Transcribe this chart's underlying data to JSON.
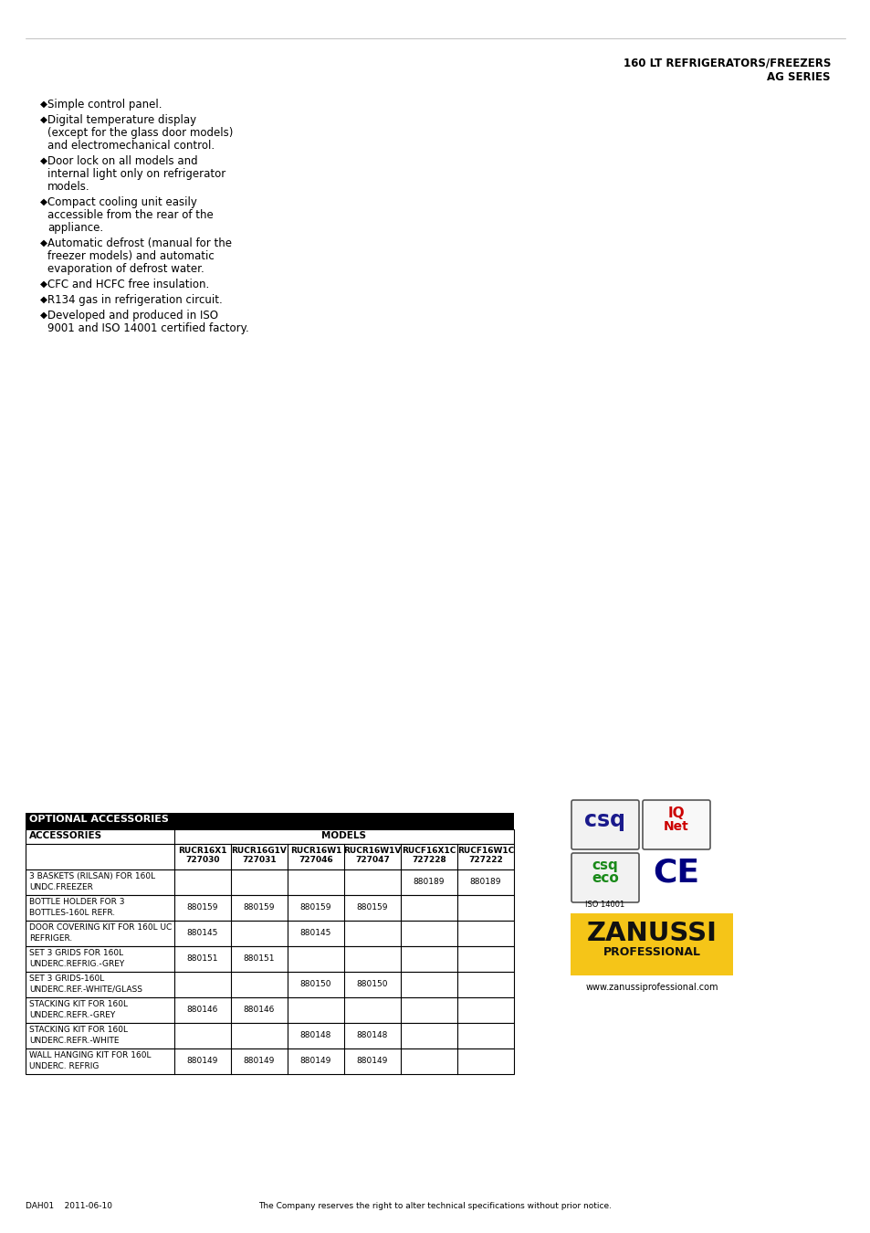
{
  "header_line1": "160 LT REFRIGERATORS/FREEZERS",
  "header_line2": "AG SERIES",
  "bullet_points": [
    "Simple control panel.",
    "Digital temperature display\n(except for the glass door models)\nand electromechanical control.",
    "Door lock on all models and\ninternal light only on refrigerator\nmodels.",
    "Compact cooling unit easily\naccessible from the rear of the\nappliance.",
    "Automatic defrost (manual for the\nfreezer models) and automatic\nevaporation of defrost water.",
    "CFC and HCFC free insulation.",
    "R134 gas in refrigeration circuit.",
    "Developed and produced in ISO\n9001 and ISO 14001 certified factory."
  ],
  "table_header": "OPTIONAL ACCESSORIES",
  "table_col_header": "ACCESSORIES",
  "table_models_header": "MODELS",
  "table_columns": [
    {
      "name": "RUCR16X1",
      "code": "727030"
    },
    {
      "name": "RUCR16G1V",
      "code": "727031"
    },
    {
      "name": "RUCR16W1",
      "code": "727046"
    },
    {
      "name": "RUCR16W1V",
      "code": "727047"
    },
    {
      "name": "RUCF16X1C",
      "code": "727228"
    },
    {
      "name": "RUCF16W1C",
      "code": "727222"
    }
  ],
  "table_rows": [
    {
      "label": "3 BASKETS (RILSAN) FOR 160L\nUNDC.FREEZER",
      "values": [
        "",
        "",
        "",
        "",
        "880189",
        "880189"
      ]
    },
    {
      "label": "BOTTLE HOLDER FOR 3\nBOTTLES-160L REFR.",
      "values": [
        "880159",
        "880159",
        "880159",
        "880159",
        "",
        ""
      ]
    },
    {
      "label": "DOOR COVERING KIT FOR 160L UC\nREFRIGER.",
      "values": [
        "880145",
        "",
        "880145",
        "",
        "",
        ""
      ]
    },
    {
      "label": "SET 3 GRIDS FOR 160L\nUNDERC.REFRIG.-GREY",
      "values": [
        "880151",
        "880151",
        "",
        "",
        "",
        ""
      ]
    },
    {
      "label": "SET 3 GRIDS-160L\nUNDERC.REF.-WHITE/GLASS",
      "values": [
        "",
        "",
        "880150",
        "880150",
        "",
        ""
      ]
    },
    {
      "label": "STACKING KIT FOR 160L\nUNDERC.REFR.-GREY",
      "values": [
        "880146",
        "880146",
        "",
        "",
        "",
        ""
      ]
    },
    {
      "label": "STACKING KIT FOR 160L\nUNDERC.REFR.-WHITE",
      "values": [
        "",
        "",
        "880148",
        "880148",
        "",
        ""
      ]
    },
    {
      "label": "WALL HANGING KIT FOR 160L\nUNDERC. REFRIG",
      "values": [
        "880149",
        "880149",
        "880149",
        "880149",
        "",
        ""
      ]
    }
  ],
  "footer_left": "DAH01    2011-06-10",
  "footer_center": "The Company reserves the right to alter technical specifications without prior notice.",
  "footer_website": "www.zanussiprofessional.com",
  "bg_color": "#ffffff",
  "text_color": "#000000",
  "table_header_bg": "#000000",
  "table_header_text": "#ffffff",
  "border_color": "#000000",
  "zanussi_bg": "#f5c518",
  "csq_blue": "#1a1a8c",
  "csq_green": "#1a8a1a",
  "ce_blue": "#000080",
  "iqnet_red": "#cc0000"
}
